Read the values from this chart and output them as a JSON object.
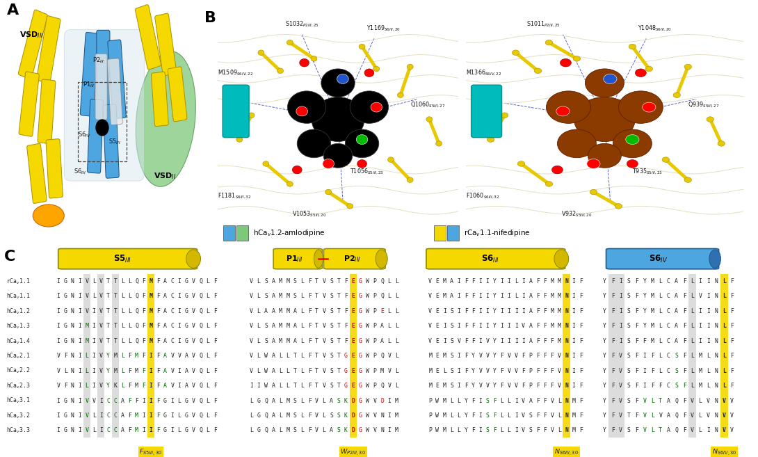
{
  "panel_label_fontsize": 16,
  "sequence_rows": [
    "rCa_v1.1",
    "hCa_v1.1",
    "hCa_v1.2",
    "hCa_v1.3",
    "hCa_v1.4",
    "hCa_v2.1",
    "hCa_v2.2",
    "hCa_v2.3",
    "hCa_v3.1",
    "hCa_v3.2",
    "hCa_v3.3"
  ],
  "S5_sequences": [
    "IGNIVLVTTLLQFMFACIGVQLF",
    "IGNIVLVTTLLQFMFACIGVQLF",
    "IGNIVIVTTLLQFMFACIGVQLF",
    "IGNIMIVTTLLQFMFACIGVQLF",
    "IGNIMIVTTLLQFMFACIGVQLF",
    "VFNILIVYMLFMFIFAVVAVQLF",
    "VLNILIVYMLFMFIFAVIAVQLF",
    "VFNILIVYKLFMFIFAVIAVQLF",
    "IGNIVVICCAFFIIFGILGVQLF",
    "IGNIVLICCAFMIIFGILGVQLF",
    "IGNIVLICCAFMIIFGILGVQLF"
  ],
  "P1P2_sequences": [
    "VLSAMMSLFTVSTFEGWPQLL",
    "VLSAMMSLFTVSTFEGWPQLL",
    "VLAAMMALFTVSTFEGWPELL",
    "VLSAMMALFTVSTFEGWPALL",
    "VLSAMMALFTVSTFEGWPALL",
    "VLWALLTLFTVSTGEGWPQVL",
    "VLWALLTLFTVSTGEGWPMVL",
    "IIWALLTLFTVSTGEGWPQVL",
    "LGQALMSLFVLASKDGWVDIM",
    "LGQALMSLFVLSSKDGWVNIM",
    "LGQALMSLFVLASKDGWVNIM"
  ],
  "S6III_sequences": [
    "VEMAIFFIIYIILIAFFMMNIF",
    "VEMAIFFIIYIILIAFFMMNIF",
    "VEISIFFIIYIIIIAFFMMNIF",
    "VEISIFFIIYIIIVAFFMMNIF",
    "VEISVFFIVYIIIIAFFFMNIF",
    "MEMSIFYVVYFVVFPFFFVNIF",
    "MELSIFYVVYFVVFPFFFVNIF",
    "MEMSIFYVVYFVVFPFFFVNIF",
    "PWMLLYFISFLLIVAFFVLNMF",
    "PWMLLYFISFLLIVSFFVLNMF",
    "PWMLLYFISFLLIVSFFVLNMF"
  ],
  "S6IV_sequences": [
    "YFISFYMLCAFLIINLF",
    "YFISFYMLCAFLVINLF",
    "YFISFYMLCAFLIINLF",
    "YFISFYMLCAFLIINLF",
    "YFISFFMLCAFLIINLF",
    "YFVSFIFLCSFLMLNLF",
    "YFVSFIFLCSFLMLNLF",
    "YFVSFIFFCSFLMLNLF",
    "YFVSFVLTAQFVLVNVV",
    "YFVTFVLVAQFVLVNVV",
    "YFVSFVLTAQFVLINVV"
  ],
  "yellow": "#F5D800",
  "blue": "#4DA6E0",
  "green_struct": "#7DC87A",
  "light_blue": "#ADD8E6",
  "orange": "#FFA500",
  "dark_yellow": "#D4B800",
  "text_dark": "#222222",
  "text_red": "#CC0000",
  "text_green": "#006400",
  "bg_mol": "#EDE8D8",
  "figure_bg": "white"
}
